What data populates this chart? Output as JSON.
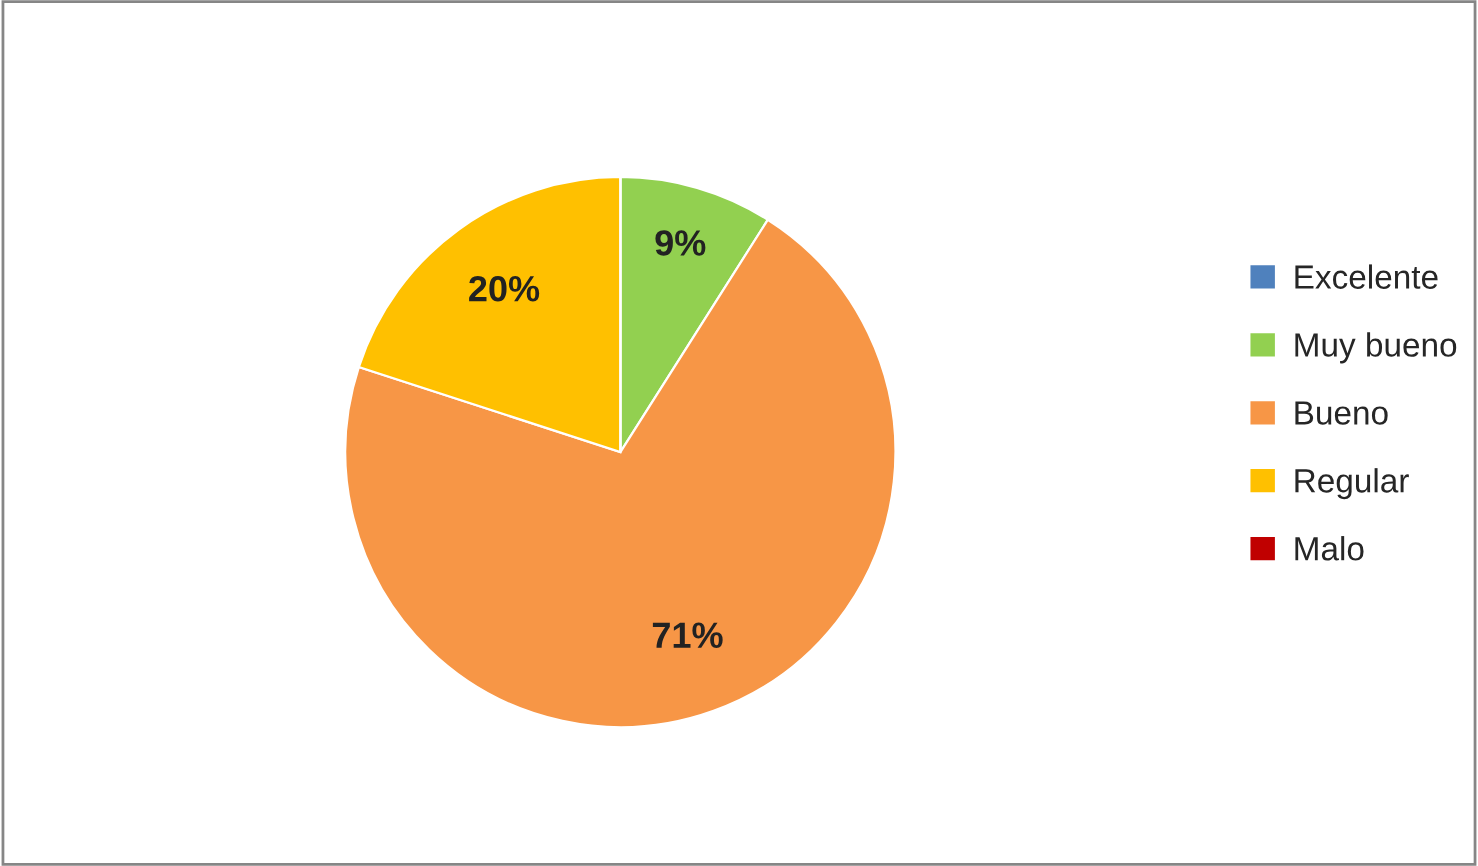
{
  "chart_data": {
    "type": "pie",
    "categories": [
      "Excelente",
      "Muy bueno",
      "Bueno",
      "Regular",
      "Malo"
    ],
    "values": [
      0,
      9,
      71,
      20,
      0
    ],
    "colors": [
      "#4f81bd",
      "#92d050",
      "#f79646",
      "#ffc000",
      "#c00000"
    ],
    "value_labels": [
      null,
      "9%",
      "71%",
      "20%",
      null
    ],
    "legend": "right"
  }
}
